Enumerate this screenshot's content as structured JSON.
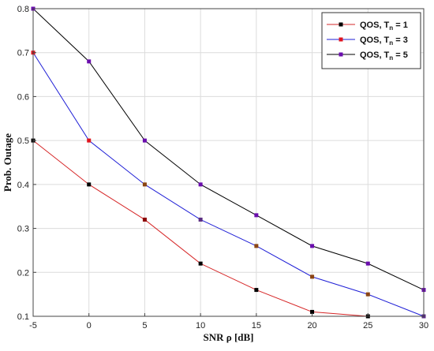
{
  "chart_data": {
    "type": "line",
    "x": [
      -5,
      0,
      5,
      10,
      15,
      20,
      25,
      30
    ],
    "xlabel": "SNR ρ [dB]",
    "ylabel": "Prob. Outage",
    "xlim": [
      -5,
      30
    ],
    "ylim": [
      0.1,
      0.8
    ],
    "xticks": [
      "-5",
      "0",
      "5",
      "10",
      "15",
      "20",
      "25",
      "30"
    ],
    "yticks": [
      "0.1",
      "0.2",
      "0.3",
      "0.4",
      "0.5",
      "0.6",
      "0.7",
      "0.8"
    ],
    "grid": true,
    "legend_position": "top-right",
    "series": [
      {
        "name": "QOS, T",
        "subscript": "n",
        "suffix": " = 1",
        "values": [
          0.5,
          0.4,
          0.32,
          0.22,
          0.16,
          0.11,
          0.1,
          0.1
        ],
        "line_color": "#d62728",
        "marker_colors": [
          "#000000",
          "#000000",
          "#8b0000",
          "#000000",
          "#000000",
          "#000000",
          "#000000",
          "#000000"
        ]
      },
      {
        "name": "QOS, T",
        "subscript": "n",
        "suffix": " = 3",
        "values": [
          0.7,
          0.5,
          0.4,
          0.32,
          0.26,
          0.19,
          0.15,
          0.1
        ],
        "line_color": "#1f1fd6",
        "marker_colors": [
          "#e0141e",
          "#e0141e",
          "#8b4513",
          "#5a2d82",
          "#8b4513",
          "#8b4513",
          "#8b4513",
          "#5a2d82"
        ]
      },
      {
        "name": "QOS, T",
        "subscript": "n",
        "suffix": " = 5",
        "values": [
          0.8,
          0.68,
          0.5,
          0.4,
          0.33,
          0.26,
          0.22,
          0.16
        ],
        "line_color": "#000000",
        "marker_colors": [
          "#6a0dad",
          "#6a0dad",
          "#6a0dad",
          "#6a0dad",
          "#6a0dad",
          "#6a0dad",
          "#6a0dad",
          "#6a0dad"
        ]
      }
    ]
  }
}
